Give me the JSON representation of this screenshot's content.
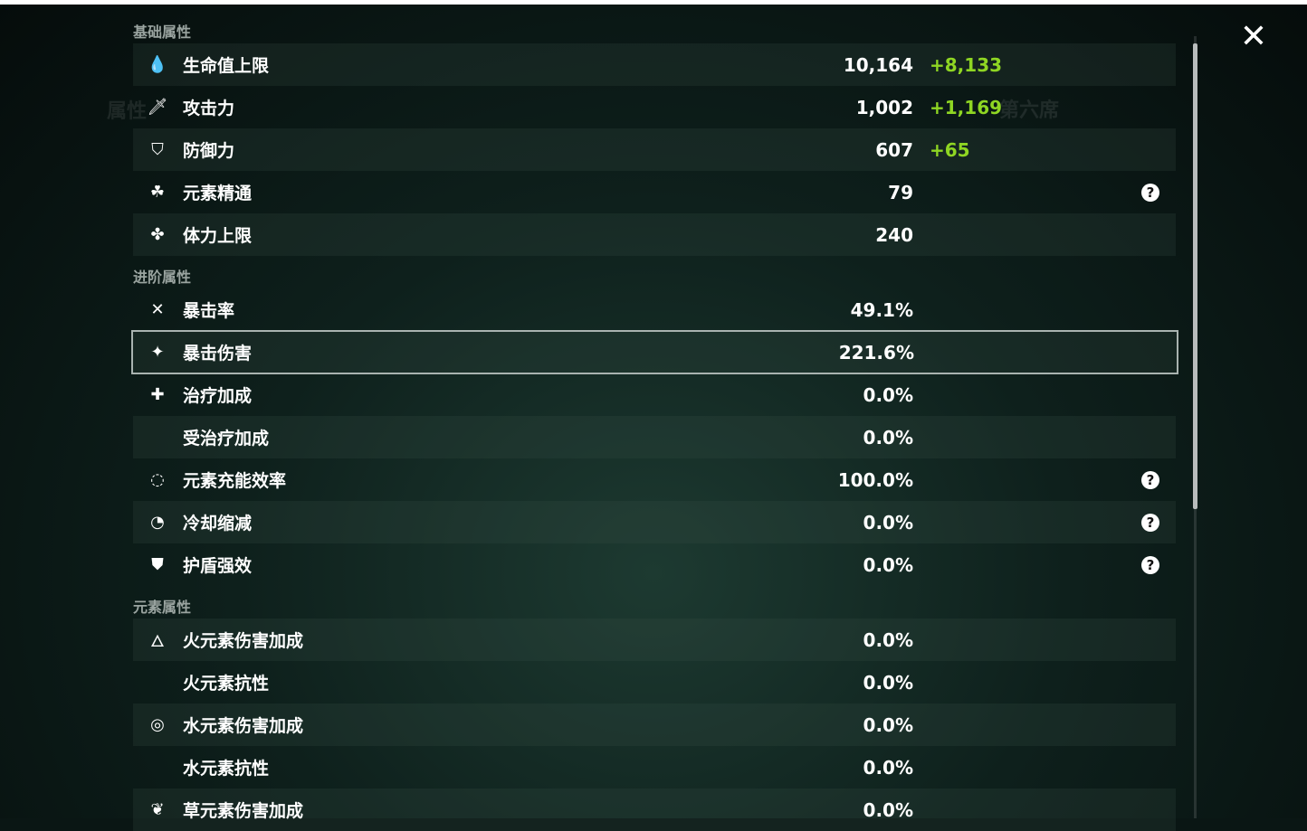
{
  "sections": [
    {
      "title": "基础属性",
      "rows": [
        {
          "icon": "hp-drop-icon",
          "glyph": "💧",
          "label": "生命值上限",
          "value": "10,164",
          "bonus": "+8,133",
          "light": true
        },
        {
          "icon": "sword-icon",
          "glyph": "🗡",
          "label": "攻击力",
          "value": "1,002",
          "bonus": "+1,169"
        },
        {
          "icon": "shield-icon",
          "glyph": "⛉",
          "label": "防御力",
          "value": "607",
          "bonus": "+65",
          "light": true
        },
        {
          "icon": "elemental-mastery-icon",
          "glyph": "☘",
          "label": "元素精通",
          "value": "79",
          "help": true
        },
        {
          "icon": "stamina-icon",
          "glyph": "✤",
          "label": "体力上限",
          "value": "240",
          "light": true
        }
      ]
    },
    {
      "title": "进阶属性",
      "rows": [
        {
          "icon": "crit-rate-icon",
          "glyph": "✕",
          "label": "暴击率",
          "value": "49.1%"
        },
        {
          "icon": "crit-dmg-icon",
          "glyph": "✦",
          "label": "暴击伤害",
          "value": "221.6%",
          "selected": true
        },
        {
          "icon": "healing-icon",
          "glyph": "✚",
          "label": "治疗加成",
          "value": "0.0%"
        },
        {
          "icon": "",
          "glyph": "",
          "label": "受治疗加成",
          "value": "0.0%",
          "light": true
        },
        {
          "icon": "energy-recharge-icon",
          "glyph": "◌",
          "label": "元素充能效率",
          "value": "100.0%",
          "help": true
        },
        {
          "icon": "cooldown-icon",
          "glyph": "◔",
          "label": "冷却缩减",
          "value": "0.0%",
          "help": true,
          "light": true
        },
        {
          "icon": "shield-strength-icon",
          "glyph": "⛊",
          "label": "护盾强效",
          "value": "0.0%",
          "help": true
        }
      ]
    },
    {
      "title": "元素属性",
      "rows": [
        {
          "icon": "pyro-icon",
          "glyph": "🜂",
          "label": "火元素伤害加成",
          "value": "0.0%",
          "light": true
        },
        {
          "icon": "",
          "glyph": "",
          "label": "火元素抗性",
          "value": "0.0%"
        },
        {
          "icon": "hydro-icon",
          "glyph": "◎",
          "label": "水元素伤害加成",
          "value": "0.0%",
          "light": true
        },
        {
          "icon": "",
          "glyph": "",
          "label": "水元素抗性",
          "value": "0.0%"
        },
        {
          "icon": "dendro-icon",
          "glyph": "❦",
          "label": "草元素伤害加成",
          "value": "0.0%",
          "light": true
        }
      ]
    }
  ],
  "help_glyph": "?",
  "close_glyph": "✕",
  "colors": {
    "bonus": "#8fd623",
    "selected_border": "#a9b3b0"
  }
}
